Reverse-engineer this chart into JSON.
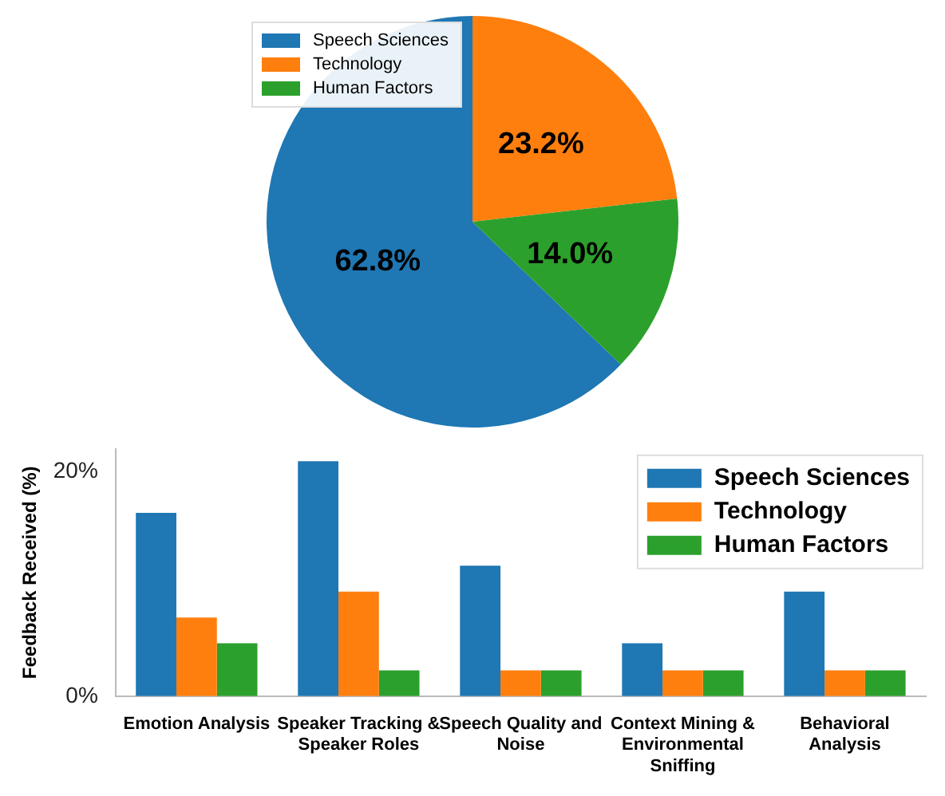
{
  "chart_data": [
    {
      "type": "pie",
      "categories": [
        "Speech Sciences",
        "Technology",
        "Human Factors"
      ],
      "values": [
        62.8,
        23.2,
        14.0
      ],
      "colors": [
        "#1f77b4",
        "#ff7f0e",
        "#2ca02c"
      ],
      "value_labels": [
        "62.8%",
        "23.2%",
        "14.0%"
      ],
      "legend": "top left"
    },
    {
      "type": "bar",
      "categories": [
        "Emotion Analysis",
        "Speaker Tracking & Speaker Roles",
        "Speech Quality and Noise",
        "Context Mining & Environmental Sniffing",
        "Behavioral Analysis"
      ],
      "ylabel": "Feedback Received (%)",
      "ylim": [
        0,
        22
      ],
      "yticks": [
        {
          "value": 0,
          "label": "0%"
        },
        {
          "value": 20,
          "label": "20%"
        }
      ],
      "legend": "top right",
      "grid": false,
      "series": [
        {
          "name": "Speech Sciences",
          "color": "#1f77b4",
          "values": [
            16.3,
            20.9,
            11.6,
            4.7,
            9.3
          ]
        },
        {
          "name": "Technology",
          "color": "#ff7f0e",
          "values": [
            7.0,
            9.3,
            2.3,
            2.3,
            2.3
          ]
        },
        {
          "name": "Human Factors",
          "color": "#2ca02c",
          "values": [
            4.7,
            2.3,
            2.3,
            2.3,
            2.3
          ]
        }
      ]
    }
  ]
}
